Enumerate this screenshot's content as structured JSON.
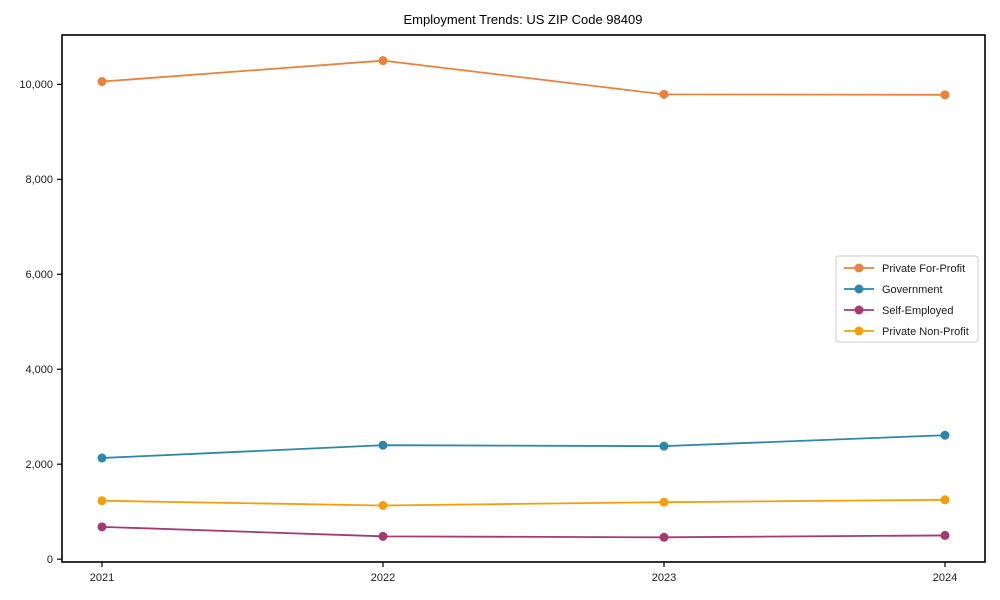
{
  "chart_data": {
    "type": "line",
    "title": "Employment Trends: US ZIP Code 98409",
    "x": [
      "2021",
      "2022",
      "2023",
      "2024"
    ],
    "xlabel": "",
    "ylabel": "",
    "grid": false,
    "marker": "circle",
    "legend_position": "center right",
    "ylim": [
      -60,
      11040
    ],
    "yticks": [
      0,
      2000,
      4000,
      6000,
      8000,
      10000
    ],
    "ytick_labels": [
      "0",
      "2,000",
      "4,000",
      "6,000",
      "8,000",
      "10,000"
    ],
    "series": [
      {
        "name": "Private For-Profit",
        "color": "#E8823D",
        "values": [
          10060,
          10500,
          9790,
          9780
        ]
      },
      {
        "name": "Government",
        "color": "#2E86AB",
        "values": [
          2130,
          2400,
          2380,
          2610
        ]
      },
      {
        "name": "Self-Employed",
        "color": "#A23B72",
        "values": [
          680,
          480,
          460,
          500
        ]
      },
      {
        "name": "Private Non-Profit",
        "color": "#F3A008",
        "values": [
          1230,
          1130,
          1200,
          1250
        ]
      }
    ]
  },
  "colors": {
    "background": "#ffffff",
    "axis": "#000000",
    "text": "#1a1a1a",
    "legend_border": "#cccccc",
    "legend_fill": "#ffffff"
  }
}
